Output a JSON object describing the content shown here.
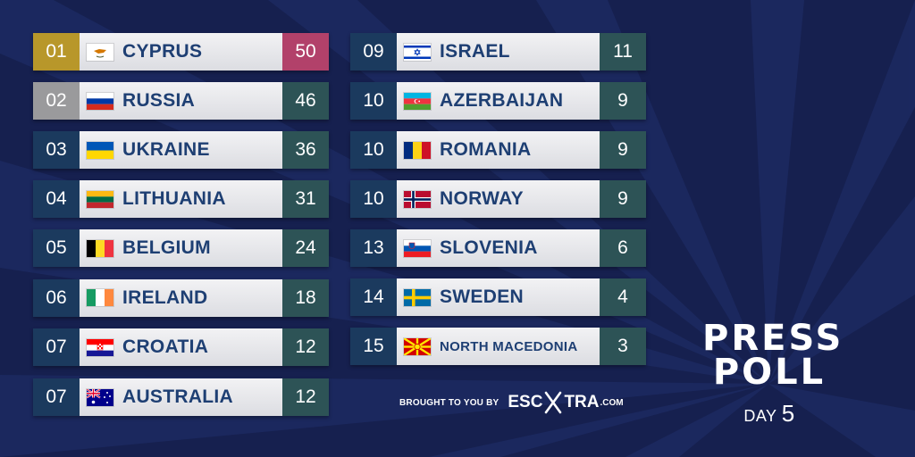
{
  "left_rows": [
    {
      "rank": "01",
      "country": "CYPRUS",
      "points": "50",
      "flag": "cyprus-flag-icon"
    },
    {
      "rank": "02",
      "country": "RUSSIA",
      "points": "46",
      "flag": "russia-flag-icon"
    },
    {
      "rank": "03",
      "country": "UKRAINE",
      "points": "36",
      "flag": "ukraine-flag-icon"
    },
    {
      "rank": "04",
      "country": "LITHUANIA",
      "points": "31",
      "flag": "lithuania-flag-icon"
    },
    {
      "rank": "05",
      "country": "BELGIUM",
      "points": "24",
      "flag": "belgium-flag-icon"
    },
    {
      "rank": "06",
      "country": "IRELAND",
      "points": "18",
      "flag": "ireland-flag-icon"
    },
    {
      "rank": "07",
      "country": "CROATIA",
      "points": "12",
      "flag": "croatia-flag-icon"
    },
    {
      "rank": "07",
      "country": "AUSTRALIA",
      "points": "12",
      "flag": "australia-flag-icon"
    }
  ],
  "right_rows": [
    {
      "rank": "09",
      "country": "ISRAEL",
      "points": "11",
      "flag": "israel-flag-icon"
    },
    {
      "rank": "10",
      "country": "AZERBAIJAN",
      "points": "9",
      "flag": "azerbaijan-flag-icon"
    },
    {
      "rank": "10",
      "country": "ROMANIA",
      "points": "9",
      "flag": "romania-flag-icon"
    },
    {
      "rank": "10",
      "country": "NORWAY",
      "points": "9",
      "flag": "norway-flag-icon"
    },
    {
      "rank": "13",
      "country": "SLOVENIA",
      "points": "6",
      "flag": "slovenia-flag-icon"
    },
    {
      "rank": "14",
      "country": "SWEDEN",
      "points": "4",
      "flag": "sweden-flag-icon"
    },
    {
      "rank": "15",
      "country": "NORTH MACEDONIA",
      "points": "3",
      "flag": "north-macedonia-flag-icon"
    }
  ],
  "footer": {
    "brought_label": "BROUGHT TO YOU BY",
    "logo_left": "ESC",
    "logo_right": "TRA",
    "logo_suffix": ".COM"
  },
  "title": {
    "line1": "PRESS",
    "line2": "POLL",
    "day_label": "DAY",
    "day_number": "5"
  },
  "colors": {
    "background": "#16204f",
    "rank_default": "#1b3a5e",
    "rank_gold": "#b8972a",
    "rank_silver": "#9a9a9c",
    "points_default": "#2d5356",
    "points_top": "#b2416a",
    "country_text": "#1e3f73"
  }
}
